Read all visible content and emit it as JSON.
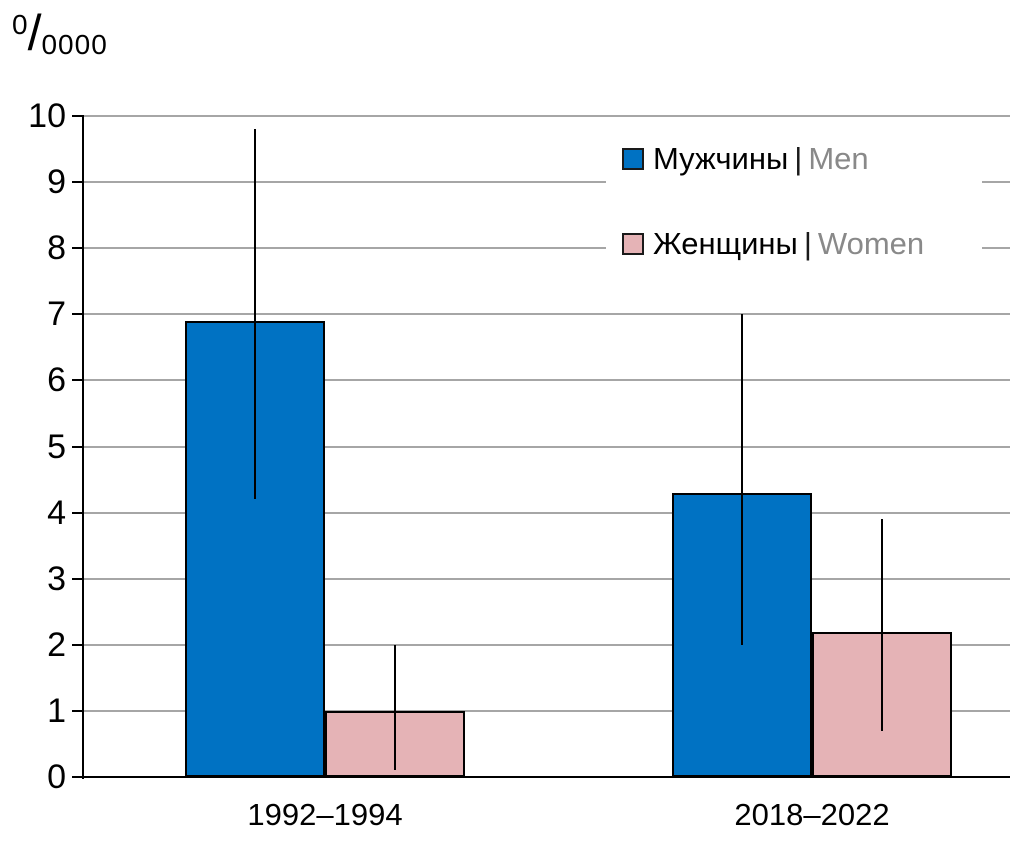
{
  "chart_data": {
    "type": "bar",
    "title": "",
    "unit_label": {
      "sup": "0",
      "slash": "/",
      "sub": "0000",
      "meaning": "per 10 000"
    },
    "categories": [
      "1992–1994",
      "2018–2022"
    ],
    "series": [
      {
        "name_ru": "Мужчины",
        "name_en": "Men",
        "color": "#0072c3",
        "values": [
          6.9,
          4.3
        ],
        "error_low": [
          4.2,
          2.0
        ],
        "error_high": [
          9.8,
          7.0
        ]
      },
      {
        "name_ru": "Женщины",
        "name_en": "Women",
        "color": "#e5b3b6",
        "values": [
          1.0,
          2.2
        ],
        "error_low": [
          0.1,
          0.7
        ],
        "error_high": [
          2.0,
          3.9
        ]
      }
    ],
    "xlabel": "",
    "ylabel": "",
    "ylim": [
      0,
      10
    ],
    "ytick_step": 1,
    "grid": true,
    "legend_position": "top-right",
    "gridline_color": "#a6a6a6",
    "axis_color": "#000000",
    "error_bar_color": "#000000"
  },
  "legend": {
    "separator": "|",
    "items": [
      {
        "label_ru": "Мужчины",
        "label_en": "Men"
      },
      {
        "label_ru": "Женщины",
        "label_en": "Women"
      }
    ]
  }
}
